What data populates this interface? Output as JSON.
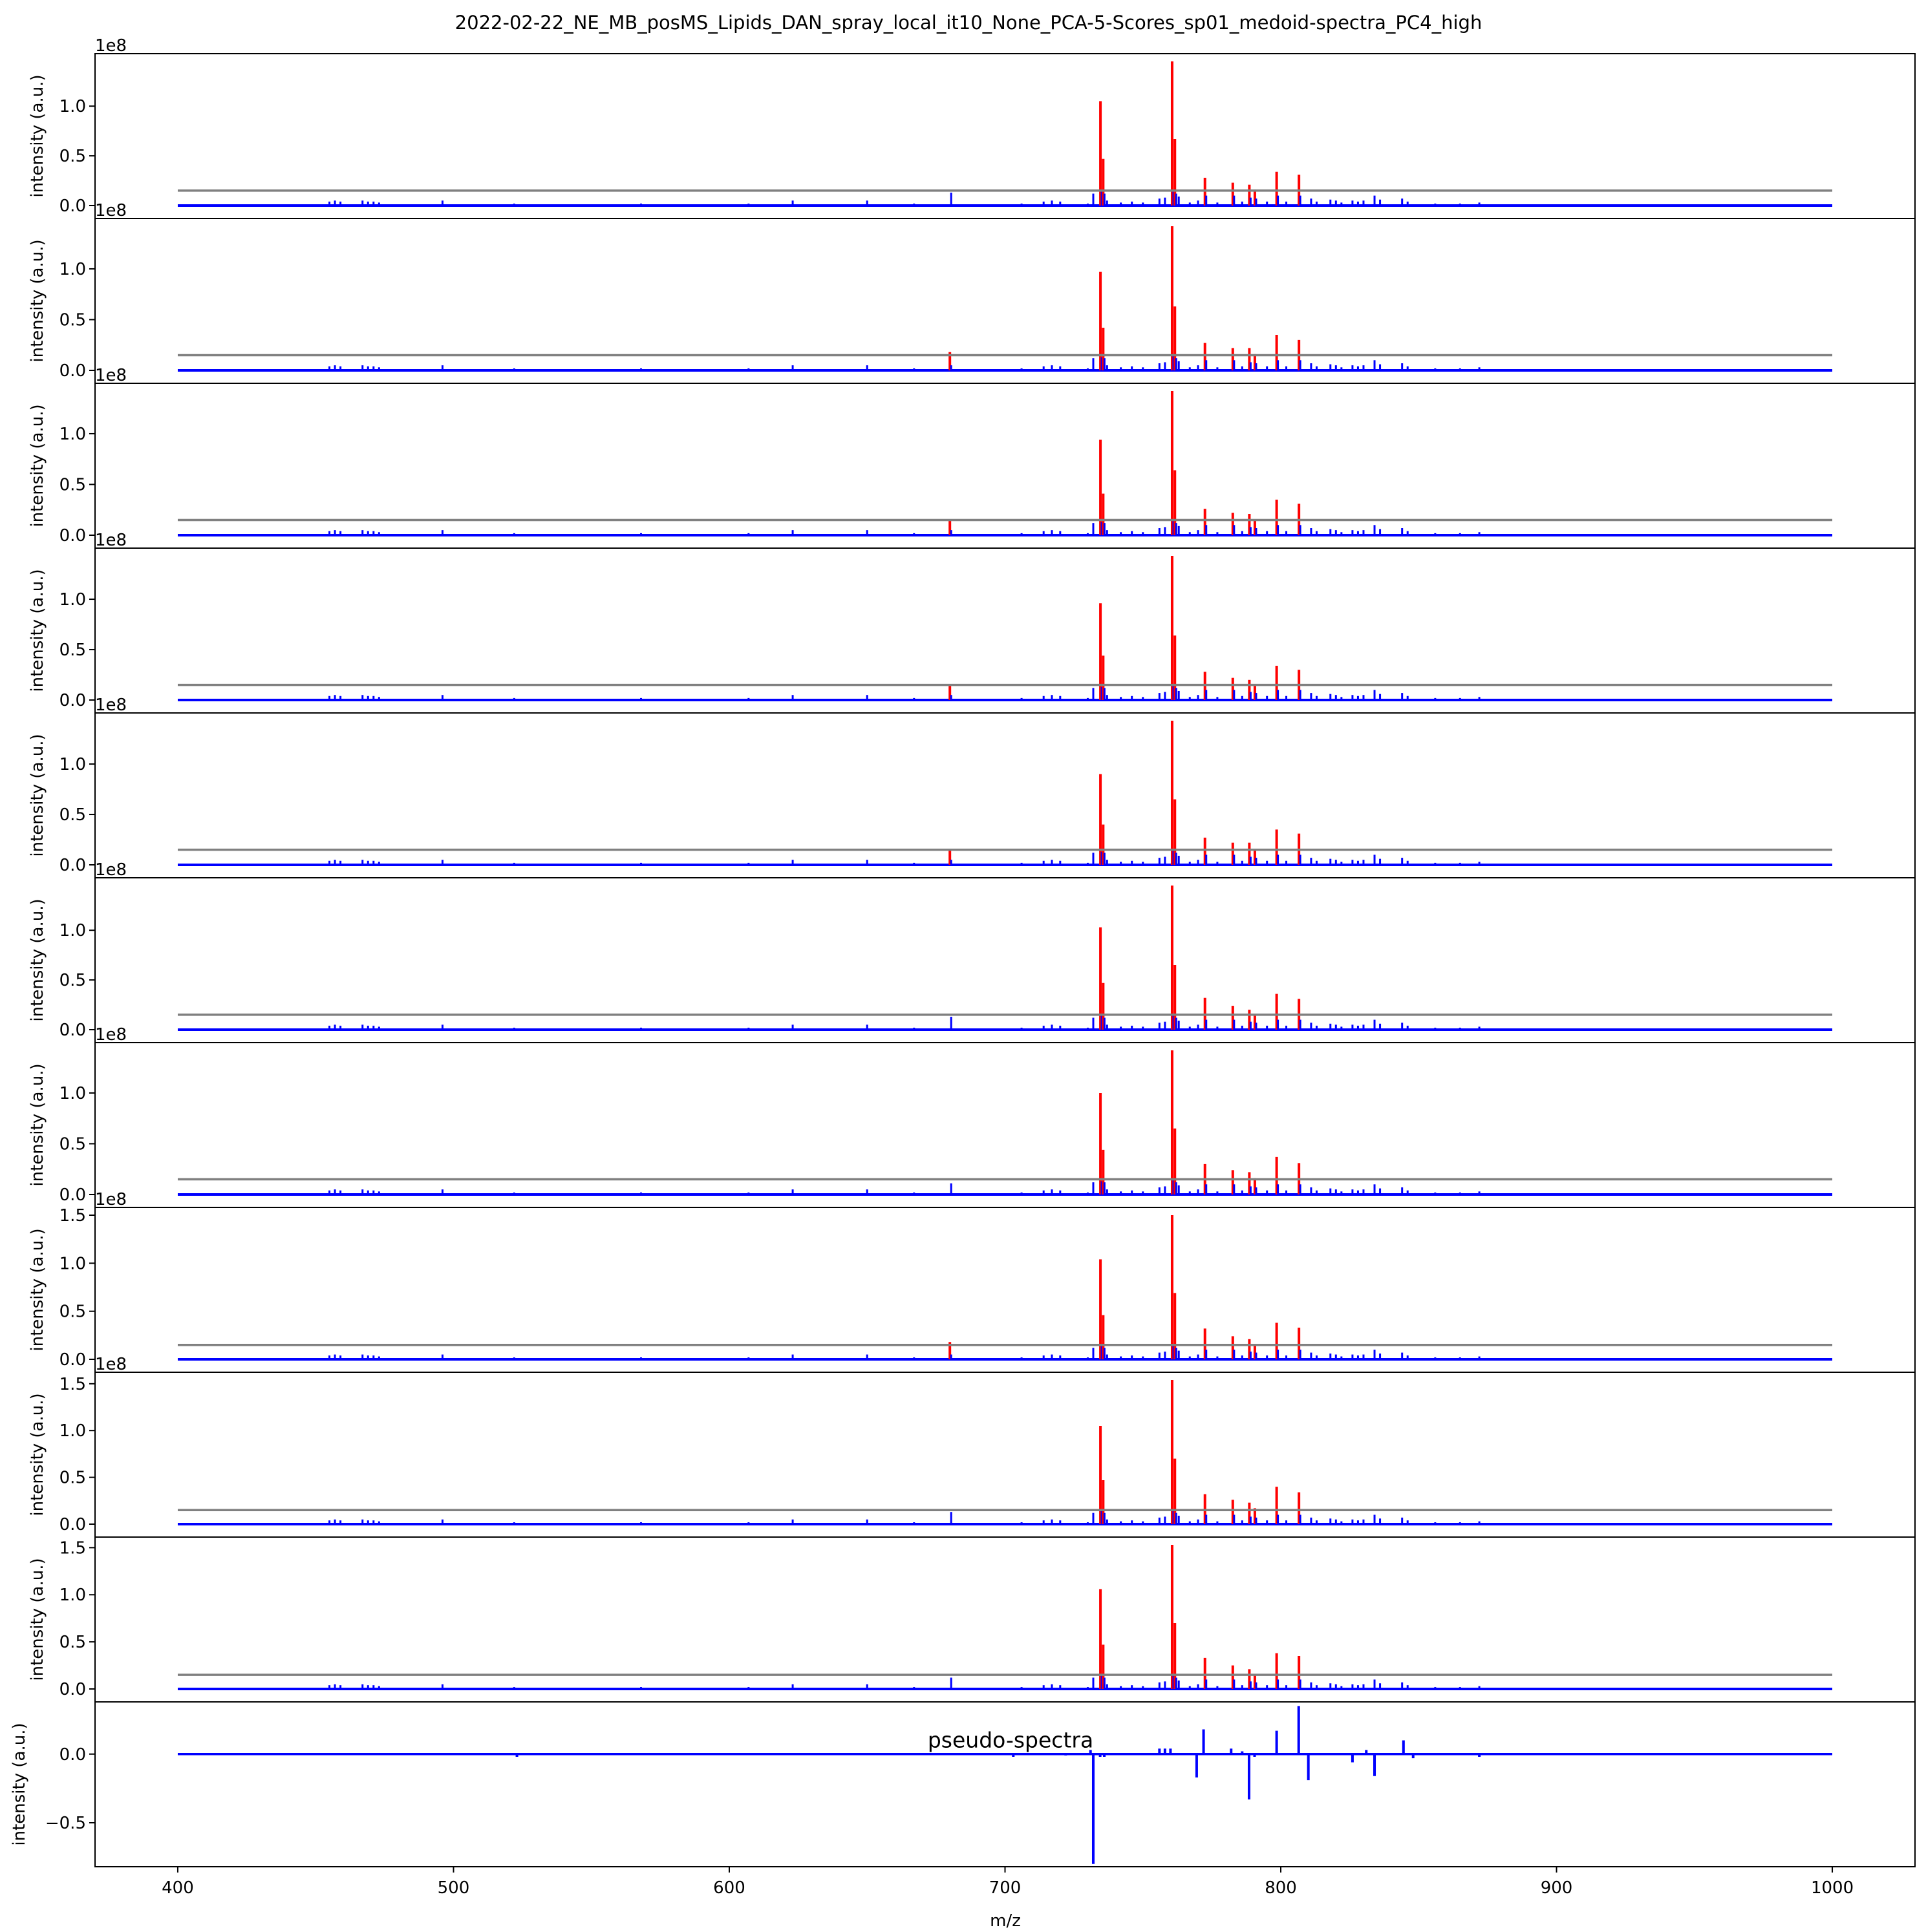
{
  "figure": {
    "title": "2022-02-22_NE_MB_posMS_Lipids_DAN_spray_local_it10_None_PCA-5-Scores_sp01_medoid-spectra_PC4_high"
  },
  "colors": {
    "spectrum": "#0000ff",
    "highlight": "#ff0000",
    "threshold": "#808080",
    "pseudo": "#0000ff"
  },
  "chart_data": {
    "type": "line",
    "subtype": "mass-spectra-stack",
    "xlabel": "m/z",
    "ylabel": "intensity (a.u.)",
    "xlim": [
      370,
      1030
    ],
    "xticks": [
      400,
      500,
      600,
      700,
      800,
      900,
      1000
    ],
    "xtick_labels": [
      "400",
      "500",
      "600",
      "700",
      "800",
      "900",
      "1000"
    ],
    "offset_text": "1e8",
    "grid": false,
    "baseline_peaks": [
      {
        "mz": 455,
        "y": 0.04
      },
      {
        "mz": 457,
        "y": 0.05
      },
      {
        "mz": 459,
        "y": 0.04
      },
      {
        "mz": 467,
        "y": 0.05
      },
      {
        "mz": 469,
        "y": 0.04
      },
      {
        "mz": 471,
        "y": 0.04
      },
      {
        "mz": 473,
        "y": 0.03
      },
      {
        "mz": 496,
        "y": 0.05
      },
      {
        "mz": 522,
        "y": 0.02
      },
      {
        "mz": 568,
        "y": 0.02
      },
      {
        "mz": 607,
        "y": 0.02
      },
      {
        "mz": 623,
        "y": 0.05
      },
      {
        "mz": 650,
        "y": 0.05
      },
      {
        "mz": 667,
        "y": 0.02
      },
      {
        "mz": 706,
        "y": 0.02
      },
      {
        "mz": 714,
        "y": 0.04
      },
      {
        "mz": 717,
        "y": 0.05
      },
      {
        "mz": 720,
        "y": 0.04
      },
      {
        "mz": 730,
        "y": 0.02
      },
      {
        "mz": 732,
        "y": 0.12
      },
      {
        "mz": 737,
        "y": 0.05
      },
      {
        "mz": 742,
        "y": 0.03
      },
      {
        "mz": 746,
        "y": 0.04
      },
      {
        "mz": 750,
        "y": 0.03
      },
      {
        "mz": 756,
        "y": 0.07
      },
      {
        "mz": 758,
        "y": 0.08
      },
      {
        "mz": 763,
        "y": 0.09
      },
      {
        "mz": 767,
        "y": 0.03
      },
      {
        "mz": 770,
        "y": 0.05
      },
      {
        "mz": 777,
        "y": 0.03
      },
      {
        "mz": 786,
        "y": 0.04
      },
      {
        "mz": 791,
        "y": 0.05
      },
      {
        "mz": 795,
        "y": 0.04
      },
      {
        "mz": 802,
        "y": 0.04
      },
      {
        "mz": 811,
        "y": 0.07
      },
      {
        "mz": 813,
        "y": 0.04
      },
      {
        "mz": 818,
        "y": 0.06
      },
      {
        "mz": 820,
        "y": 0.05
      },
      {
        "mz": 822,
        "y": 0.03
      },
      {
        "mz": 826,
        "y": 0.05
      },
      {
        "mz": 828,
        "y": 0.04
      },
      {
        "mz": 830,
        "y": 0.05
      },
      {
        "mz": 834,
        "y": 0.1
      },
      {
        "mz": 836,
        "y": 0.06
      },
      {
        "mz": 844,
        "y": 0.07
      },
      {
        "mz": 846,
        "y": 0.04
      },
      {
        "mz": 856,
        "y": 0.02
      },
      {
        "mz": 865,
        "y": 0.02
      },
      {
        "mz": 872,
        "y": 0.03
      }
    ],
    "subplots": [
      {
        "ylim": [
          0,
          1.45
        ],
        "yticks": [
          0.0,
          0.5,
          1.0
        ],
        "ytick_labels": [
          "0.0",
          "0.5",
          "1.0"
        ],
        "offset_text": "1e8",
        "threshold": 0.15,
        "peaks": [
          {
            "mz": 680,
            "blue": 0.13,
            "red": 0
          },
          {
            "mz": 734.6,
            "blue": 0.14,
            "red": 1.05
          },
          {
            "mz": 735.6,
            "blue": 0.12,
            "red": 0.47
          },
          {
            "mz": 760.6,
            "blue": 0.14,
            "red": 1.45
          },
          {
            "mz": 761.6,
            "blue": 0.12,
            "red": 0.67
          },
          {
            "mz": 772.5,
            "blue": 0.1,
            "red": 0.28
          },
          {
            "mz": 782.6,
            "blue": 0.1,
            "red": 0.23
          },
          {
            "mz": 788.6,
            "blue": 0.08,
            "red": 0.21
          },
          {
            "mz": 790.6,
            "blue": 0.07,
            "red": 0.16
          },
          {
            "mz": 798.5,
            "blue": 0.1,
            "red": 0.34
          },
          {
            "mz": 806.6,
            "blue": 0.1,
            "red": 0.31
          }
        ]
      },
      {
        "ylim": [
          0,
          1.42
        ],
        "yticks": [
          0.0,
          0.5,
          1.0
        ],
        "ytick_labels": [
          "0.0",
          "0.5",
          "1.0"
        ],
        "offset_text": "1e8",
        "threshold": 0.15,
        "peaks": [
          {
            "mz": 680,
            "blue": 0.05,
            "red": 0.18
          },
          {
            "mz": 734.6,
            "blue": 0.13,
            "red": 0.97
          },
          {
            "mz": 735.6,
            "blue": 0.12,
            "red": 0.42
          },
          {
            "mz": 760.6,
            "blue": 0.14,
            "red": 1.42
          },
          {
            "mz": 761.6,
            "blue": 0.12,
            "red": 0.63
          },
          {
            "mz": 772.5,
            "blue": 0.1,
            "red": 0.27
          },
          {
            "mz": 782.6,
            "blue": 0.1,
            "red": 0.22
          },
          {
            "mz": 788.6,
            "blue": 0.08,
            "red": 0.22
          },
          {
            "mz": 790.6,
            "blue": 0.07,
            "red": 0.16
          },
          {
            "mz": 798.5,
            "blue": 0.1,
            "red": 0.35
          },
          {
            "mz": 806.6,
            "blue": 0.1,
            "red": 0.3
          }
        ]
      },
      {
        "ylim": [
          0,
          1.42
        ],
        "yticks": [
          0.0,
          0.5,
          1.0
        ],
        "ytick_labels": [
          "0.0",
          "0.5",
          "1.0"
        ],
        "offset_text": "1e8",
        "threshold": 0.15,
        "peaks": [
          {
            "mz": 680,
            "blue": 0.05,
            "red": 0.15
          },
          {
            "mz": 734.6,
            "blue": 0.13,
            "red": 0.94
          },
          {
            "mz": 735.6,
            "blue": 0.12,
            "red": 0.41
          },
          {
            "mz": 760.6,
            "blue": 0.14,
            "red": 1.42
          },
          {
            "mz": 761.6,
            "blue": 0.12,
            "red": 0.64
          },
          {
            "mz": 772.5,
            "blue": 0.1,
            "red": 0.26
          },
          {
            "mz": 782.6,
            "blue": 0.1,
            "red": 0.22
          },
          {
            "mz": 788.6,
            "blue": 0.08,
            "red": 0.21
          },
          {
            "mz": 790.6,
            "blue": 0.07,
            "red": 0.15
          },
          {
            "mz": 798.5,
            "blue": 0.1,
            "red": 0.35
          },
          {
            "mz": 806.6,
            "blue": 0.1,
            "red": 0.31
          }
        ]
      },
      {
        "ylim": [
          0,
          1.43
        ],
        "yticks": [
          0.0,
          0.5,
          1.0
        ],
        "ytick_labels": [
          "0.0",
          "0.5",
          "1.0"
        ],
        "offset_text": "1e8",
        "threshold": 0.15,
        "peaks": [
          {
            "mz": 680,
            "blue": 0.05,
            "red": 0.14
          },
          {
            "mz": 734.6,
            "blue": 0.13,
            "red": 0.96
          },
          {
            "mz": 735.6,
            "blue": 0.12,
            "red": 0.44
          },
          {
            "mz": 760.6,
            "blue": 0.14,
            "red": 1.43
          },
          {
            "mz": 761.6,
            "blue": 0.12,
            "red": 0.64
          },
          {
            "mz": 772.5,
            "blue": 0.1,
            "red": 0.28
          },
          {
            "mz": 782.6,
            "blue": 0.1,
            "red": 0.22
          },
          {
            "mz": 788.6,
            "blue": 0.08,
            "red": 0.2
          },
          {
            "mz": 790.6,
            "blue": 0.07,
            "red": 0.14
          },
          {
            "mz": 798.5,
            "blue": 0.1,
            "red": 0.34
          },
          {
            "mz": 806.6,
            "blue": 0.1,
            "red": 0.3
          }
        ]
      },
      {
        "ylim": [
          0,
          1.43
        ],
        "yticks": [
          0.0,
          0.5,
          1.0
        ],
        "ytick_labels": [
          "0.0",
          "0.5",
          "1.0"
        ],
        "offset_text": "1e8",
        "threshold": 0.15,
        "peaks": [
          {
            "mz": 680,
            "blue": 0.05,
            "red": 0.15
          },
          {
            "mz": 734.6,
            "blue": 0.13,
            "red": 0.9
          },
          {
            "mz": 735.6,
            "blue": 0.12,
            "red": 0.4
          },
          {
            "mz": 760.6,
            "blue": 0.14,
            "red": 1.43
          },
          {
            "mz": 761.6,
            "blue": 0.12,
            "red": 0.65
          },
          {
            "mz": 772.5,
            "blue": 0.1,
            "red": 0.27
          },
          {
            "mz": 782.6,
            "blue": 0.1,
            "red": 0.22
          },
          {
            "mz": 788.6,
            "blue": 0.08,
            "red": 0.22
          },
          {
            "mz": 790.6,
            "blue": 0.07,
            "red": 0.16
          },
          {
            "mz": 798.5,
            "blue": 0.1,
            "red": 0.35
          },
          {
            "mz": 806.6,
            "blue": 0.1,
            "red": 0.31
          }
        ]
      },
      {
        "ylim": [
          0,
          1.45
        ],
        "yticks": [
          0.0,
          0.5,
          1.0
        ],
        "ytick_labels": [
          "0.0",
          "0.5",
          "1.0"
        ],
        "offset_text": "1e8",
        "threshold": 0.15,
        "peaks": [
          {
            "mz": 680,
            "blue": 0.13,
            "red": 0
          },
          {
            "mz": 734.6,
            "blue": 0.14,
            "red": 1.03
          },
          {
            "mz": 735.6,
            "blue": 0.12,
            "red": 0.47
          },
          {
            "mz": 760.6,
            "blue": 0.14,
            "red": 1.45
          },
          {
            "mz": 761.6,
            "blue": 0.12,
            "red": 0.65
          },
          {
            "mz": 772.5,
            "blue": 0.1,
            "red": 0.32
          },
          {
            "mz": 782.6,
            "blue": 0.1,
            "red": 0.24
          },
          {
            "mz": 788.6,
            "blue": 0.08,
            "red": 0.2
          },
          {
            "mz": 790.6,
            "blue": 0.07,
            "red": 0.14
          },
          {
            "mz": 798.5,
            "blue": 0.1,
            "red": 0.36
          },
          {
            "mz": 806.6,
            "blue": 0.1,
            "red": 0.31
          }
        ]
      },
      {
        "ylim": [
          0,
          1.42
        ],
        "yticks": [
          0.0,
          0.5,
          1.0
        ],
        "ytick_labels": [
          "0.0",
          "0.5",
          "1.0"
        ],
        "offset_text": "1e8",
        "threshold": 0.15,
        "peaks": [
          {
            "mz": 680,
            "blue": 0.11,
            "red": 0
          },
          {
            "mz": 734.6,
            "blue": 0.13,
            "red": 1.0
          },
          {
            "mz": 735.6,
            "blue": 0.12,
            "red": 0.44
          },
          {
            "mz": 760.6,
            "blue": 0.14,
            "red": 1.42
          },
          {
            "mz": 761.6,
            "blue": 0.12,
            "red": 0.65
          },
          {
            "mz": 772.5,
            "blue": 0.1,
            "red": 0.3
          },
          {
            "mz": 782.6,
            "blue": 0.1,
            "red": 0.24
          },
          {
            "mz": 788.6,
            "blue": 0.08,
            "red": 0.22
          },
          {
            "mz": 790.6,
            "blue": 0.07,
            "red": 0.16
          },
          {
            "mz": 798.5,
            "blue": 0.1,
            "red": 0.37
          },
          {
            "mz": 806.6,
            "blue": 0.1,
            "red": 0.31
          }
        ]
      },
      {
        "ylim": [
          0,
          1.5
        ],
        "yticks": [
          0.0,
          0.5,
          1.0,
          1.5
        ],
        "ytick_labels": [
          "0.0",
          "0.5",
          "1.0",
          "1.5"
        ],
        "offset_text": "1e8",
        "threshold": 0.15,
        "peaks": [
          {
            "mz": 680,
            "blue": 0.05,
            "red": 0.18
          },
          {
            "mz": 734.6,
            "blue": 0.14,
            "red": 1.04
          },
          {
            "mz": 735.6,
            "blue": 0.12,
            "red": 0.46
          },
          {
            "mz": 760.6,
            "blue": 0.14,
            "red": 1.5
          },
          {
            "mz": 761.6,
            "blue": 0.12,
            "red": 0.69
          },
          {
            "mz": 772.5,
            "blue": 0.1,
            "red": 0.32
          },
          {
            "mz": 782.6,
            "blue": 0.1,
            "red": 0.24
          },
          {
            "mz": 788.6,
            "blue": 0.08,
            "red": 0.21
          },
          {
            "mz": 790.6,
            "blue": 0.07,
            "red": 0.15
          },
          {
            "mz": 798.5,
            "blue": 0.1,
            "red": 0.38
          },
          {
            "mz": 806.6,
            "blue": 0.1,
            "red": 0.33
          }
        ]
      },
      {
        "ylim": [
          0,
          1.54
        ],
        "yticks": [
          0.0,
          0.5,
          1.0,
          1.5
        ],
        "ytick_labels": [
          "0.0",
          "0.5",
          "1.0",
          "1.5"
        ],
        "offset_text": "1e8",
        "threshold": 0.15,
        "peaks": [
          {
            "mz": 680,
            "blue": 0.13,
            "red": 0
          },
          {
            "mz": 734.6,
            "blue": 0.14,
            "red": 1.05
          },
          {
            "mz": 735.6,
            "blue": 0.12,
            "red": 0.47
          },
          {
            "mz": 760.6,
            "blue": 0.14,
            "red": 1.54
          },
          {
            "mz": 761.6,
            "blue": 0.12,
            "red": 0.7
          },
          {
            "mz": 772.5,
            "blue": 0.1,
            "red": 0.32
          },
          {
            "mz": 782.6,
            "blue": 0.1,
            "red": 0.26
          },
          {
            "mz": 788.6,
            "blue": 0.08,
            "red": 0.23
          },
          {
            "mz": 790.6,
            "blue": 0.07,
            "red": 0.17
          },
          {
            "mz": 798.5,
            "blue": 0.1,
            "red": 0.4
          },
          {
            "mz": 806.6,
            "blue": 0.1,
            "red": 0.34
          }
        ]
      },
      {
        "ylim": [
          0,
          1.53
        ],
        "yticks": [
          0.0,
          0.5,
          1.0,
          1.5
        ],
        "ytick_labels": [
          "0.0",
          "0.5",
          "1.0",
          "1.5"
        ],
        "offset_text": "",
        "threshold": 0.15,
        "peaks": [
          {
            "mz": 680,
            "blue": 0.12,
            "red": 0
          },
          {
            "mz": 734.6,
            "blue": 0.14,
            "red": 1.06
          },
          {
            "mz": 735.6,
            "blue": 0.12,
            "red": 0.47
          },
          {
            "mz": 760.6,
            "blue": 0.14,
            "red": 1.53
          },
          {
            "mz": 761.6,
            "blue": 0.12,
            "red": 0.7
          },
          {
            "mz": 772.5,
            "blue": 0.1,
            "red": 0.33
          },
          {
            "mz": 782.6,
            "blue": 0.1,
            "red": 0.25
          },
          {
            "mz": 788.6,
            "blue": 0.08,
            "red": 0.21
          },
          {
            "mz": 790.6,
            "blue": 0.07,
            "red": 0.16
          },
          {
            "mz": 798.5,
            "blue": 0.1,
            "red": 0.38
          },
          {
            "mz": 806.6,
            "blue": 0.1,
            "red": 0.35
          }
        ]
      }
    ],
    "pseudo_spectrum": {
      "label": "pseudo-spectra",
      "ylim": [
        -0.82,
        0.38
      ],
      "yticks": [
        -0.5,
        0.0
      ],
      "ytick_labels": [
        "−0.5",
        "0.0"
      ],
      "sticks": [
        {
          "mz": 523,
          "y": -0.02
        },
        {
          "mz": 703,
          "y": -0.02
        },
        {
          "mz": 722,
          "y": -0.01
        },
        {
          "mz": 731,
          "y": 0.03
        },
        {
          "mz": 732,
          "y": -0.8
        },
        {
          "mz": 734.5,
          "y": -0.02
        },
        {
          "mz": 736,
          "y": -0.02
        },
        {
          "mz": 756,
          "y": 0.04
        },
        {
          "mz": 758,
          "y": 0.04
        },
        {
          "mz": 760,
          "y": 0.04
        },
        {
          "mz": 769.5,
          "y": -0.17
        },
        {
          "mz": 772,
          "y": 0.18
        },
        {
          "mz": 782,
          "y": 0.04
        },
        {
          "mz": 786,
          "y": 0.02
        },
        {
          "mz": 788.5,
          "y": -0.33
        },
        {
          "mz": 790.5,
          "y": -0.02
        },
        {
          "mz": 798.5,
          "y": 0.17
        },
        {
          "mz": 806.5,
          "y": 0.35
        },
        {
          "mz": 810,
          "y": -0.19
        },
        {
          "mz": 826,
          "y": -0.06
        },
        {
          "mz": 831,
          "y": 0.03
        },
        {
          "mz": 834,
          "y": -0.16
        },
        {
          "mz": 844.5,
          "y": 0.1
        },
        {
          "mz": 848,
          "y": -0.03
        },
        {
          "mz": 872,
          "y": -0.02
        }
      ]
    }
  }
}
